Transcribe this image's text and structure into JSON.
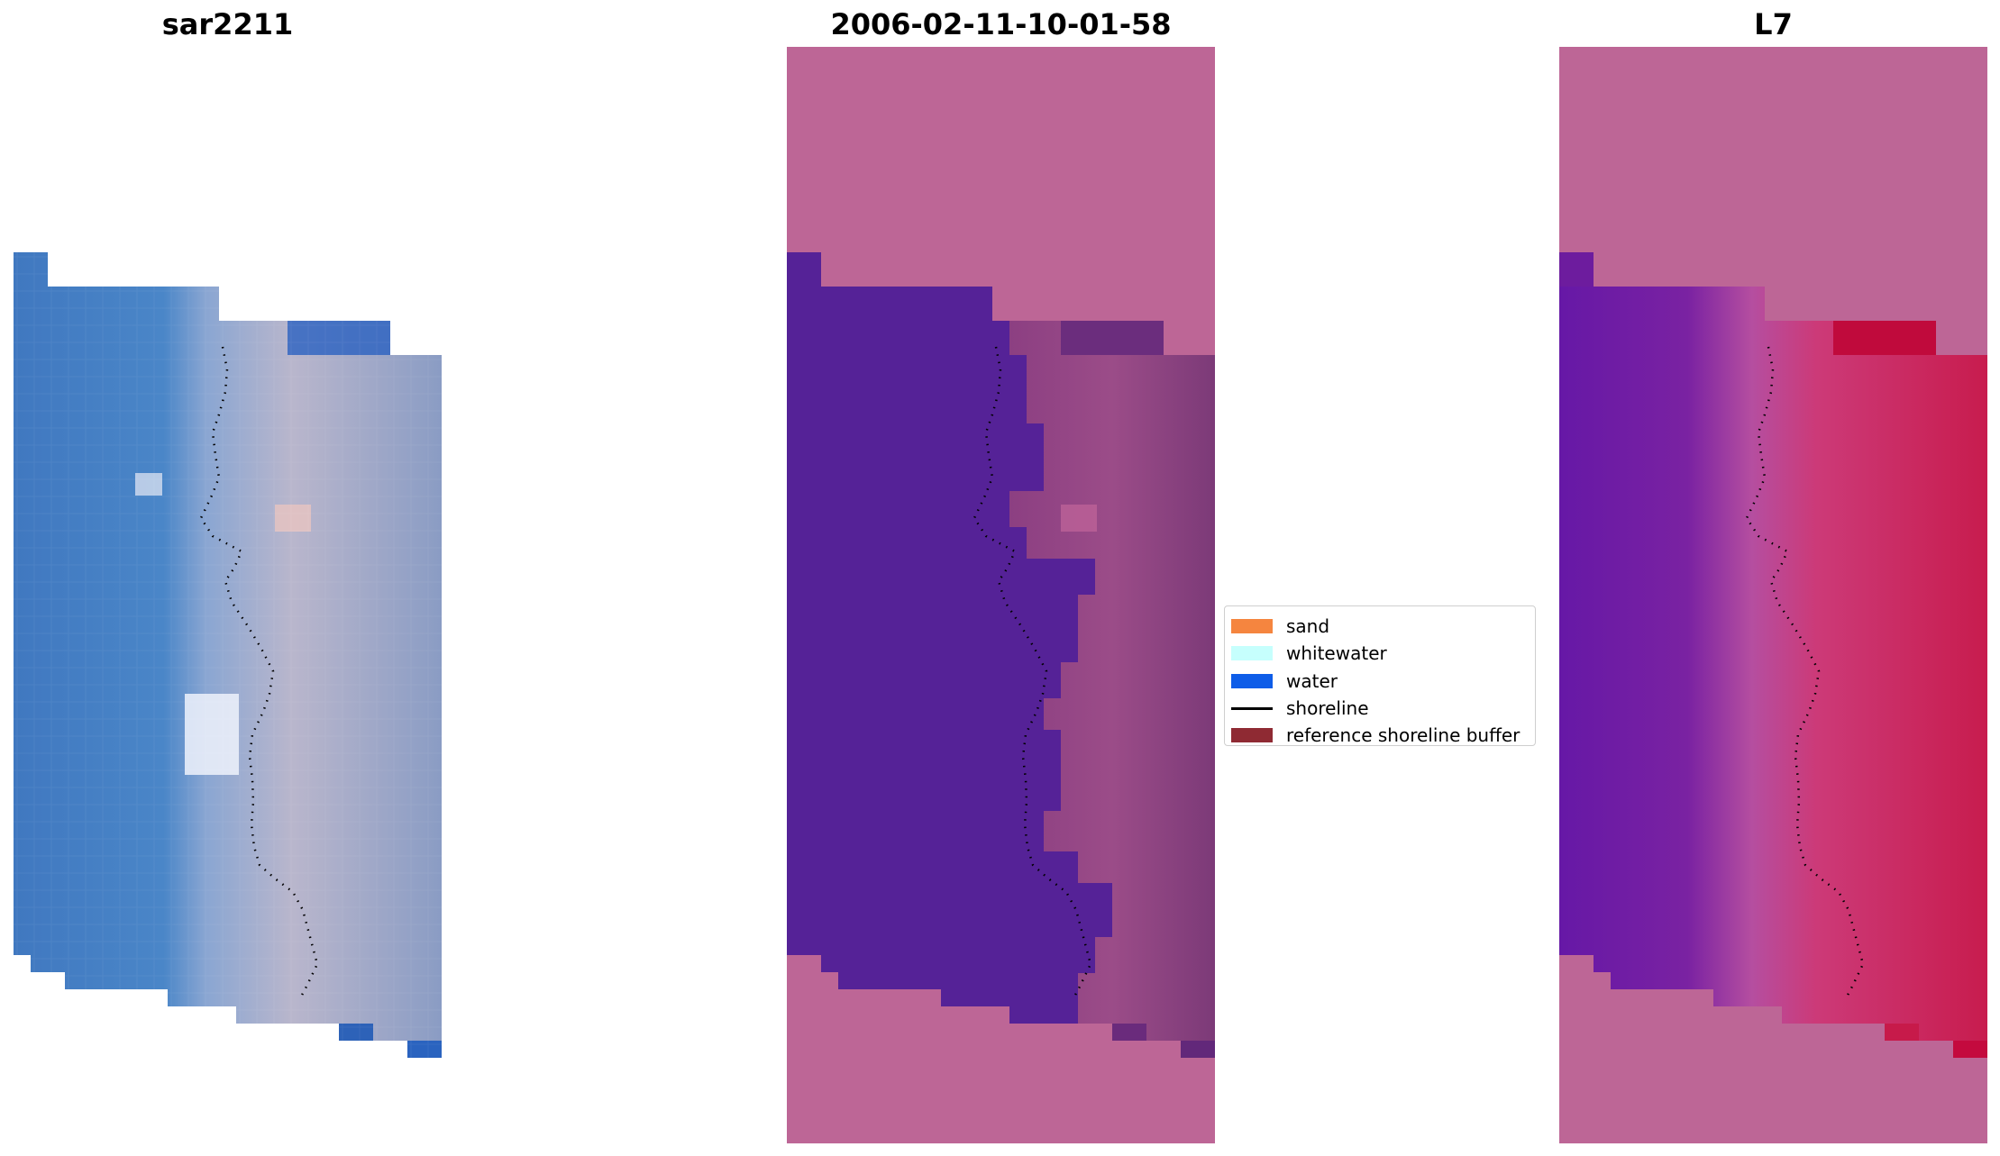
{
  "panels": {
    "left": {
      "title": "sar2211"
    },
    "middle": {
      "title": "2006-02-11-10-01-58"
    },
    "right": {
      "title": "L7"
    }
  },
  "legend": {
    "items": [
      {
        "label": "sand",
        "kind": "patch",
        "color": "#f5853f"
      },
      {
        "label": "whitewater",
        "kind": "patch",
        "color": "#c6fffd"
      },
      {
        "label": "water",
        "kind": "patch",
        "color": "#0e5de8"
      },
      {
        "label": "shoreline",
        "kind": "line",
        "color": "#000000"
      },
      {
        "label": "reference shoreline buffer",
        "kind": "patch",
        "color": "#8f2a33"
      }
    ]
  },
  "colors": {
    "buffer_pink": "#bd6696",
    "water_purple": "#552297",
    "rgb_blue": "#4a7fc4",
    "rgb_sand": "#b8b4c8"
  }
}
